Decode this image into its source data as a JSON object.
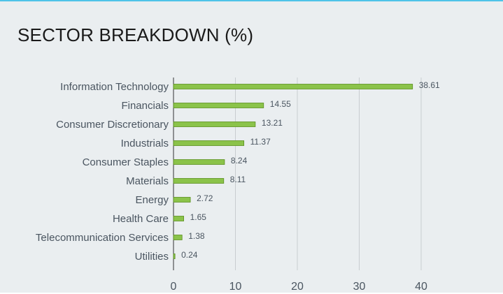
{
  "title": "SECTOR BREAKDOWN (%)",
  "colors": {
    "bar_fill": "#8bc34a",
    "bar_stroke": "#5a8f1f",
    "grid": "#c8cdd0",
    "axis": "#333333",
    "accent_top": "#4fc3e8"
  },
  "chart_data": {
    "type": "bar",
    "orientation": "horizontal",
    "title": "SECTOR BREAKDOWN (%)",
    "categories": [
      "Information Technology",
      "Financials",
      "Consumer Discretionary",
      "Industrials",
      "Consumer Staples",
      "Materials",
      "Energy",
      "Health Care",
      "Telecommunication Services",
      "Utilities"
    ],
    "values": [
      38.61,
      14.55,
      13.21,
      11.37,
      8.24,
      8.11,
      2.72,
      1.65,
      1.38,
      0.24
    ],
    "value_labels": [
      "38.61",
      "14.55",
      "13.21",
      "11.37",
      "8.24",
      "8.11",
      "2.72",
      "1.65",
      "1.38",
      "0.24"
    ],
    "xlim": [
      0,
      40
    ],
    "xticks": [
      0,
      10,
      20,
      30,
      40
    ],
    "xtick_labels": [
      "0",
      "10",
      "20",
      "30",
      "40"
    ],
    "grid": true,
    "legend": "none"
  }
}
